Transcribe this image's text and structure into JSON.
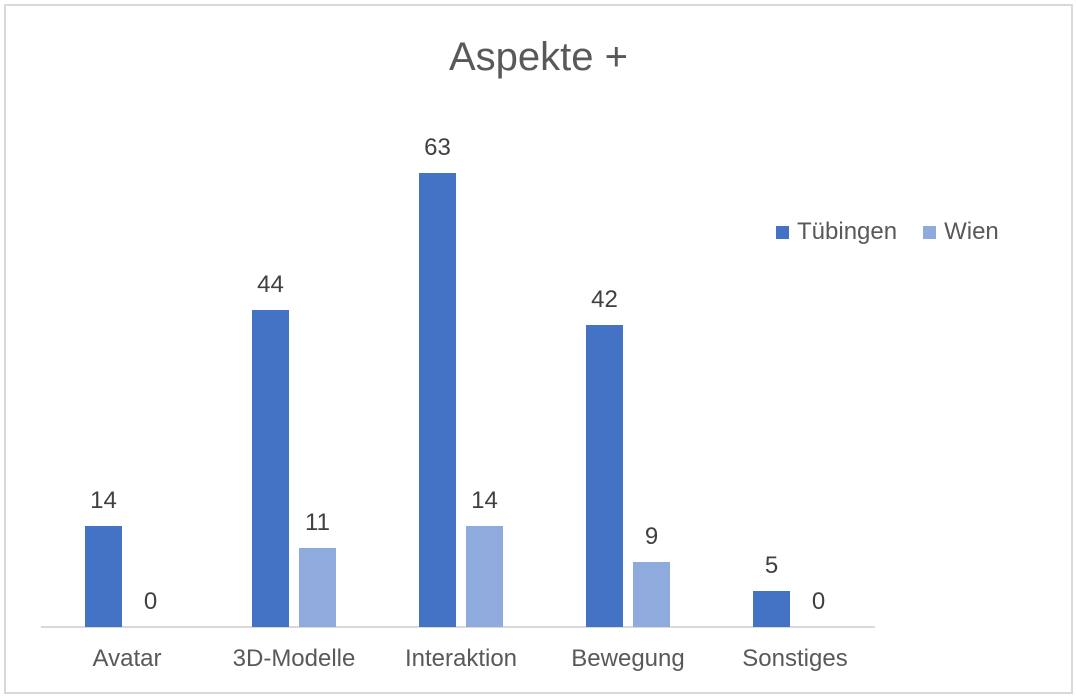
{
  "window": {
    "background_color": "#FFFFFF",
    "frame_border_color": "#D9D9D9"
  },
  "chart_data": {
    "type": "bar",
    "title": "Aspekte +",
    "categories": [
      "Avatar",
      "3D-Modelle",
      "Interaktion",
      "Bewegung",
      "Sonstiges"
    ],
    "series": [
      {
        "name": "Tübingen",
        "color": "#4472C4",
        "values": [
          14,
          44,
          63,
          42,
          5
        ]
      },
      {
        "name": "Wien",
        "color": "#8FAADC",
        "values": [
          0,
          11,
          14,
          9,
          0
        ]
      }
    ],
    "data_labels": [
      {
        "category": "Avatar",
        "Tübingen": "14",
        "Wien": "0"
      },
      {
        "category": "3D-Modelle",
        "Tübingen": "44",
        "Wien": "11"
      },
      {
        "category": "Interaktion",
        "Tübingen": "63",
        "Wien": "14"
      },
      {
        "category": "Bewegung",
        "Tübingen": "42",
        "Wien": "9"
      },
      {
        "category": "Sonstiges",
        "Tübingen": "5",
        "Wien": "0"
      }
    ],
    "xlabel": "",
    "ylabel": "",
    "ylim": [
      0,
      70
    ],
    "grid": false,
    "legend_position": "right",
    "axis_line_color": "#D9D9D9",
    "title_color": "#595959",
    "axis_text_color": "#595959",
    "data_label_color": "#404040"
  }
}
